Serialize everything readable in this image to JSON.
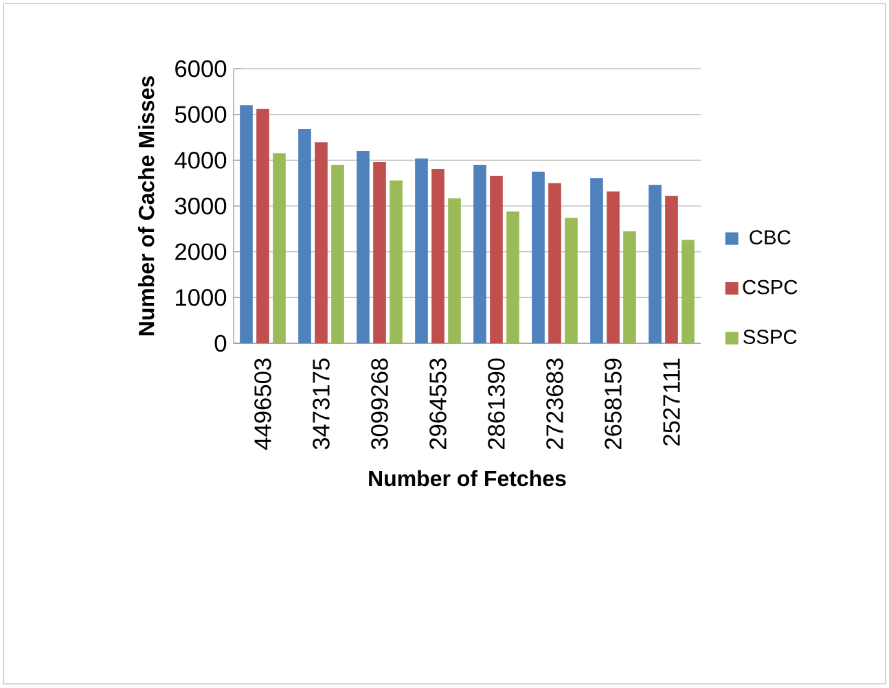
{
  "chart_data": {
    "type": "bar",
    "xlabel": "Number of Fetches",
    "ylabel": "Number of Cache Misses",
    "categories": [
      "4496503",
      "3473175",
      "3099268",
      "2964553",
      "2861390",
      "2723683",
      "2658159",
      "2527111"
    ],
    "series": [
      {
        "name": "CBC",
        "color": "#4f81bd",
        "values": [
          5200,
          4680,
          4200,
          4040,
          3900,
          3750,
          3610,
          3460
        ]
      },
      {
        "name": "CSPC",
        "color": "#c0504d",
        "values": [
          5120,
          4390,
          3960,
          3810,
          3660,
          3500,
          3320,
          3220
        ]
      },
      {
        "name": "SSPC",
        "color": "#9bbb59",
        "values": [
          4150,
          3900,
          3560,
          3170,
          2880,
          2740,
          2450,
          2260
        ]
      }
    ],
    "ylim": [
      0,
      6000
    ],
    "yticks": [
      0,
      1000,
      2000,
      3000,
      4000,
      5000,
      6000
    ],
    "grid": "y",
    "legend": "right"
  }
}
